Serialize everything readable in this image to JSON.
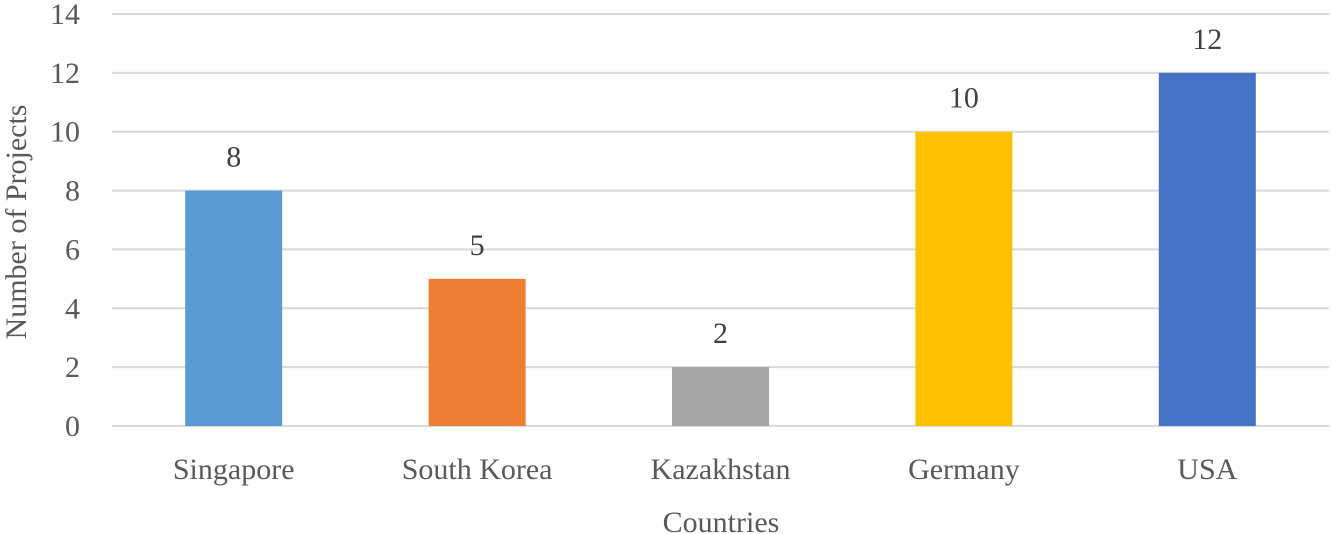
{
  "chart_data": {
    "type": "bar",
    "title": "",
    "xlabel": "Countries",
    "ylabel": "Number of Projects",
    "categories": [
      "Singapore",
      "South Korea",
      "Kazakhstan",
      "Germany",
      "USA"
    ],
    "values": [
      8,
      5,
      2,
      10,
      12
    ],
    "data_labels": [
      "8",
      "5",
      "2",
      "10",
      "12"
    ],
    "y_ticks": [
      "0",
      "2",
      "4",
      "6",
      "8",
      "10",
      "12",
      "14"
    ],
    "ylim": [
      0,
      14
    ],
    "grid": true,
    "legend": "none",
    "bar_colors": [
      "#5b9bd5",
      "#ed7d31",
      "#a5a5a5",
      "#ffc000",
      "#4472c4"
    ]
  }
}
